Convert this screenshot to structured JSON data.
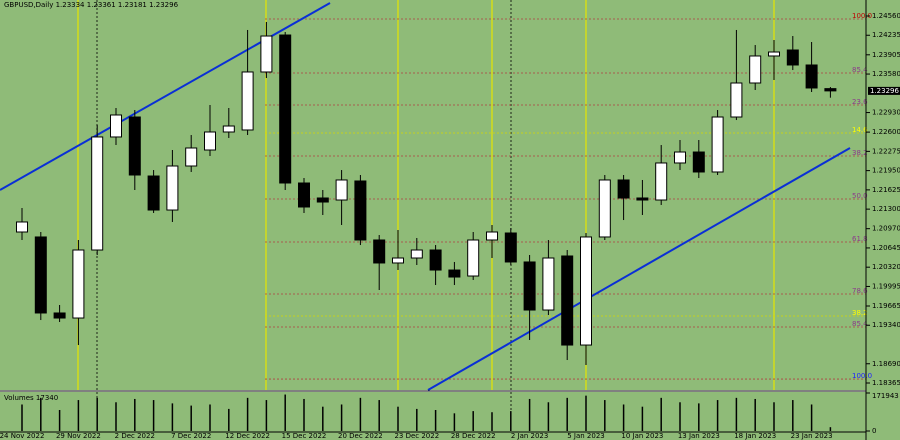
{
  "chart_data": [
    {
      "type": "candlestick",
      "title": "GBPUSD,Daily  1.23334 1.23361 1.23181 1.23296",
      "categories": [
        "24 Nov 2022",
        null,
        null,
        "29 Nov 2022",
        null,
        null,
        "2 Dec 2022",
        null,
        null,
        "7 Dec 2022",
        null,
        null,
        "12 Dec 2022",
        null,
        null,
        "15 Dec 2022",
        null,
        null,
        "20 Dec 2022",
        null,
        null,
        "23 Dec 2022",
        null,
        null,
        "28 Dec 2022",
        null,
        null,
        "2 Jan 2023",
        null,
        null,
        "5 Jan 2023",
        null,
        null,
        "10 Jan 2023",
        null,
        null,
        "13 Jan 2023",
        null,
        null,
        "18 Jan 2023",
        null,
        null,
        "23 Jan 2023",
        null
      ],
      "open": [
        1.20914,
        1.2083,
        1.19547,
        1.19462,
        1.2061,
        1.22518,
        1.22855,
        1.21859,
        1.21285,
        1.22028,
        1.22298,
        1.22602,
        1.22636,
        1.23615,
        1.24239,
        1.21741,
        1.21488,
        1.21454,
        1.21775,
        1.20779,
        1.20391,
        1.20475,
        1.2061,
        1.20272,
        1.20171,
        1.20779,
        1.20897,
        1.20408,
        1.19597,
        1.20509,
        1.19006,
        1.2083,
        1.21792,
        1.21488,
        1.21454,
        1.22079,
        1.22264,
        1.21927,
        1.22855,
        1.23429,
        1.23885,
        1.23986,
        1.23733,
        1.23334
      ],
      "high": [
        1.21319,
        1.20914,
        1.19682,
        1.20779,
        1.2272,
        1.23007,
        1.22973,
        1.2196,
        1.22298,
        1.22551,
        1.23058,
        1.23007,
        1.24324,
        1.24459,
        1.2429,
        1.21825,
        1.21623,
        1.2196,
        1.21876,
        1.20863,
        1.20948,
        1.20813,
        1.20694,
        1.20408,
        1.20914,
        1.21032,
        1.20981,
        1.20526,
        1.20779,
        1.2061,
        1.20897,
        1.21876,
        1.21876,
        1.21792,
        1.22382,
        1.22467,
        1.22467,
        1.22973,
        1.24324,
        1.2407,
        1.24155,
        1.24222,
        1.24121,
        1.23361
      ],
      "low": [
        1.20779,
        1.19428,
        1.19395,
        1.19006,
        1.20526,
        1.22382,
        1.21623,
        1.21235,
        1.21083,
        1.21927,
        1.22197,
        1.22501,
        1.22551,
        1.23513,
        1.21623,
        1.21235,
        1.21201,
        1.21032,
        1.20694,
        1.19935,
        1.20272,
        1.20357,
        1.20019,
        1.20019,
        1.20104,
        1.20475,
        1.20357,
        1.19091,
        1.19513,
        1.18753,
        1.18669,
        1.20779,
        1.21116,
        1.21201,
        1.2137,
        1.2196,
        1.21825,
        1.21876,
        1.22804,
        1.23311,
        1.2348,
        1.23648,
        1.23277,
        1.23181
      ],
      "close": [
        1.21083,
        1.19547,
        1.19462,
        1.2061,
        1.22518,
        1.22889,
        1.21876,
        1.21285,
        1.22028,
        1.22332,
        1.22602,
        1.22703,
        1.23615,
        1.24222,
        1.21741,
        1.21336,
        1.2142,
        1.21792,
        1.20779,
        1.20391,
        1.20475,
        1.2061,
        1.20272,
        1.20154,
        1.20779,
        1.20914,
        1.20408,
        1.19597,
        1.20475,
        1.19006,
        1.2083,
        1.21792,
        1.21488,
        1.21454,
        1.22079,
        1.22264,
        1.21927,
        1.22855,
        1.23429,
        1.23885,
        1.23952,
        1.23733,
        1.23345,
        1.23296
      ],
      "up_color": "#ffffff",
      "down_color": "#000000",
      "current_price": 1.23296,
      "ylim": [
        1.18247,
        1.2483
      ],
      "yticks": [
        {
          "value": 1.2456,
          "label": "1.24560"
        },
        {
          "value": 1.24235,
          "label": "1.24235"
        },
        {
          "value": 1.23905,
          "label": "1.23905"
        },
        {
          "value": 1.2358,
          "label": "1.23580"
        },
        {
          "value": 1.2293,
          "label": "1.22930"
        },
        {
          "value": 1.226,
          "label": "1.22600"
        },
        {
          "value": 1.22275,
          "label": "1.22275"
        },
        {
          "value": 1.2195,
          "label": "1.21950"
        },
        {
          "value": 1.21625,
          "label": "1.21625"
        },
        {
          "value": 1.213,
          "label": "1.21300"
        },
        {
          "value": 1.2097,
          "label": "1.20970"
        },
        {
          "value": 1.20645,
          "label": "1.20645"
        },
        {
          "value": 1.2032,
          "label": "1.20320"
        },
        {
          "value": 1.19995,
          "label": "1.19995"
        },
        {
          "value": 1.19665,
          "label": "1.19665"
        },
        {
          "value": 1.1934,
          "label": "1.19340"
        },
        {
          "value": 1.1869,
          "label": "1.18690"
        },
        {
          "value": 1.18365,
          "label": "1.18365"
        }
      ],
      "levels": [
        {
          "label": "100.0",
          "value": 1.24509,
          "color": "#c00000"
        },
        {
          "label": "85.4",
          "value": 1.23598,
          "color": "#8b3a8b"
        },
        {
          "label": "23.6",
          "value": 1.23058,
          "color": "#8b3a8b"
        },
        {
          "label": "14.6",
          "value": 1.22585,
          "color": "#ffff00"
        },
        {
          "label": "38.2",
          "value": 1.22197,
          "color": "#8b3a8b"
        },
        {
          "label": "50.0",
          "value": 1.21471,
          "color": "#8b3a8b"
        },
        {
          "label": "61.8",
          "value": 1.20745,
          "color": "#8b3a8b"
        },
        {
          "label": "78.6",
          "value": 1.19867,
          "color": "#8b3a8b"
        },
        {
          "label": "38.2",
          "value": 1.19496,
          "color": "#ffff00"
        },
        {
          "label": "85.4",
          "value": 1.1931,
          "color": "#8b3a8b"
        },
        {
          "label": "100.0",
          "value": 1.18432,
          "color": "#2020ff"
        }
      ]
    },
    {
      "type": "bar",
      "title": "Volumes 17340",
      "color": "#000000",
      "values": [
        120000,
        150000,
        95000,
        140000,
        150000,
        130000,
        145000,
        140000,
        125000,
        115000,
        120000,
        100000,
        150000,
        140000,
        165000,
        145000,
        110000,
        120000,
        150000,
        140000,
        110000,
        100000,
        95000,
        80000,
        90000,
        85000,
        90000,
        145000,
        130000,
        150000,
        160000,
        140000,
        120000,
        110000,
        150000,
        130000,
        125000,
        140000,
        150000,
        145000,
        130000,
        140000,
        120000,
        17340
      ],
      "ylim": [
        0,
        171943
      ],
      "yticks": [
        0,
        171943
      ]
    }
  ]
}
